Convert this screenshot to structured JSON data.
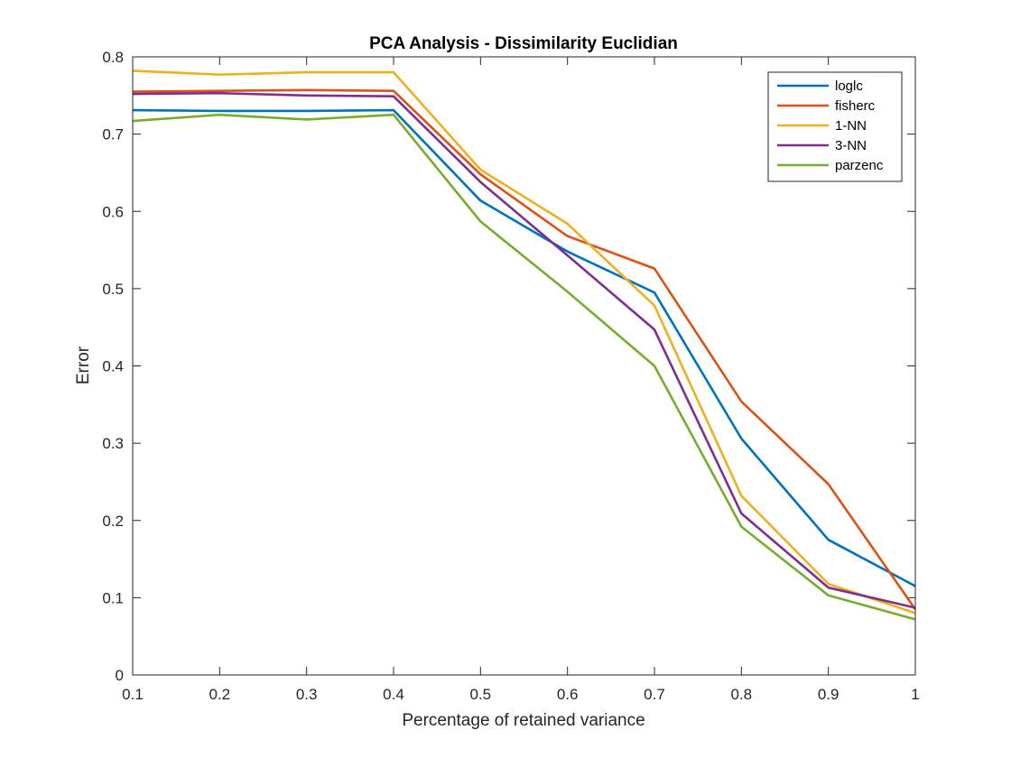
{
  "chart_data": {
    "type": "line",
    "title": "PCA Analysis - Dissimilarity Euclidian",
    "xlabel": "Percentage of retained variance",
    "ylabel": "Error",
    "xlim": [
      0.1,
      1
    ],
    "ylim": [
      0,
      0.8
    ],
    "xticks": [
      "0.1",
      "0.2",
      "0.3",
      "0.4",
      "0.5",
      "0.6",
      "0.7",
      "0.8",
      "0.9",
      "1"
    ],
    "yticks": [
      "0",
      "0.1",
      "0.2",
      "0.3",
      "0.4",
      "0.5",
      "0.6",
      "0.7",
      "0.8"
    ],
    "grid": false,
    "legend_position": "top-right",
    "x": [
      0.1,
      0.2,
      0.3,
      0.4,
      0.5,
      0.6,
      0.7,
      0.8,
      0.9,
      1.0
    ],
    "series": [
      {
        "name": "loglc",
        "color": "#0072BD",
        "values": [
          0.731,
          0.73,
          0.73,
          0.731,
          0.614,
          0.548,
          0.495,
          0.306,
          0.175,
          0.115
        ]
      },
      {
        "name": "fisherc",
        "color": "#D95319",
        "values": [
          0.755,
          0.756,
          0.757,
          0.756,
          0.648,
          0.568,
          0.526,
          0.354,
          0.247,
          0.085
        ]
      },
      {
        "name": "1-NN",
        "color": "#EDB120",
        "values": [
          0.782,
          0.777,
          0.78,
          0.78,
          0.654,
          0.584,
          0.478,
          0.232,
          0.118,
          0.08
        ]
      },
      {
        "name": "3-NN",
        "color": "#7E2F8E",
        "values": [
          0.752,
          0.753,
          0.75,
          0.749,
          0.638,
          0.543,
          0.447,
          0.209,
          0.113,
          0.087
        ]
      },
      {
        "name": "parzenc",
        "color": "#77AC30",
        "values": [
          0.717,
          0.725,
          0.719,
          0.725,
          0.587,
          0.496,
          0.4,
          0.192,
          0.103,
          0.072
        ]
      }
    ]
  }
}
